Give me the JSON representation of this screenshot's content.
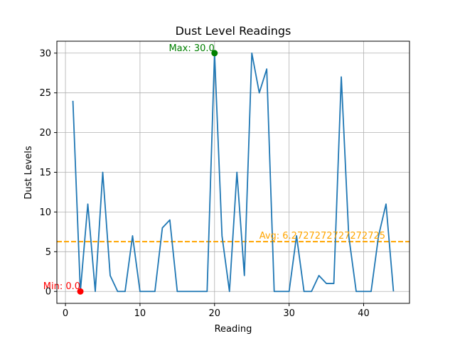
{
  "chart_data": {
    "type": "line",
    "title": "Dust Level Readings",
    "xlabel": "Reading",
    "ylabel": "Dust Levels",
    "xlim": [
      -1.15,
      46.15
    ],
    "ylim": [
      -1.5,
      31.5
    ],
    "xticks": [
      0,
      10,
      20,
      30,
      40
    ],
    "yticks": [
      0,
      5,
      10,
      15,
      20,
      25,
      30
    ],
    "grid": true,
    "series": [
      {
        "color": "#1f77b4",
        "x": [
          1,
          2,
          3,
          4,
          5,
          6,
          7,
          8,
          9,
          10,
          11,
          12,
          13,
          14,
          15,
          16,
          17,
          18,
          19,
          20,
          21,
          22,
          23,
          24,
          25,
          26,
          27,
          28,
          29,
          30,
          31,
          32,
          33,
          34,
          35,
          36,
          37,
          38,
          39,
          40,
          41,
          42,
          43,
          44
        ],
        "y": [
          24,
          0,
          11,
          0,
          15,
          2,
          0,
          0,
          7,
          0,
          0,
          0,
          8,
          9,
          0,
          0,
          0,
          0,
          0,
          30,
          7,
          0,
          15,
          2,
          30,
          25,
          28,
          0,
          0,
          0,
          7,
          0,
          0,
          2,
          1,
          1,
          27,
          7,
          0,
          0,
          0,
          7,
          11,
          0
        ]
      }
    ],
    "annotations": {
      "max": {
        "label": "Max: 30.0",
        "x": 20,
        "y": 30,
        "color": "#008000"
      },
      "min": {
        "label": "Min: 0.0",
        "x": 2,
        "y": 0,
        "color": "#ff0000"
      },
      "avg": {
        "label": "Avg: 6.2727272727272725",
        "y": 6.2727272727272725,
        "color": "#ffa500"
      }
    }
  }
}
